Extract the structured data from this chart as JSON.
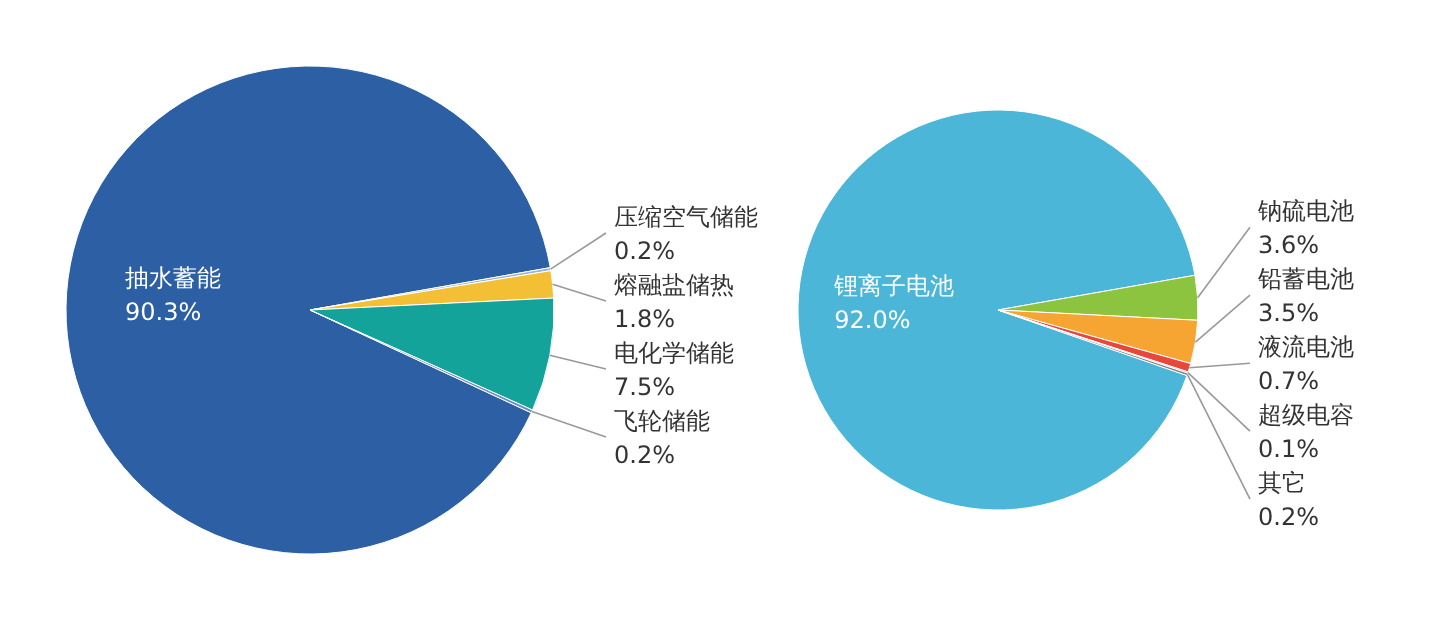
{
  "chart_data": [
    {
      "type": "pie",
      "categories": [
        "抽水蓄能",
        "压缩空气储能",
        "熔融盐储热",
        "电化学储能",
        "飞轮储能"
      ],
      "values": [
        90.3,
        0.2,
        1.8,
        7.5,
        0.2
      ],
      "colors": [
        "#2c5fa4",
        "#9ab3d6",
        "#f3c035",
        "#13a39a",
        "#6d8fbf"
      ],
      "value_labels": [
        "90.3%",
        "0.2%",
        "1.8%",
        "7.5%",
        "0.2%"
      ]
    },
    {
      "type": "pie",
      "categories": [
        "锂离子电池",
        "钠硫电池",
        "铅蓄电池",
        "液流电池",
        "超级电容",
        "其它"
      ],
      "values": [
        92.0,
        3.6,
        3.5,
        0.7,
        0.1,
        0.2
      ],
      "colors": [
        "#4bb6d8",
        "#8cc43f",
        "#f6a532",
        "#e9473b",
        "#b07ab8",
        "#7f7f7f"
      ],
      "value_labels": [
        "92.0%",
        "3.6%",
        "3.5%",
        "0.7%",
        "0.1%",
        "0.2%"
      ]
    }
  ]
}
